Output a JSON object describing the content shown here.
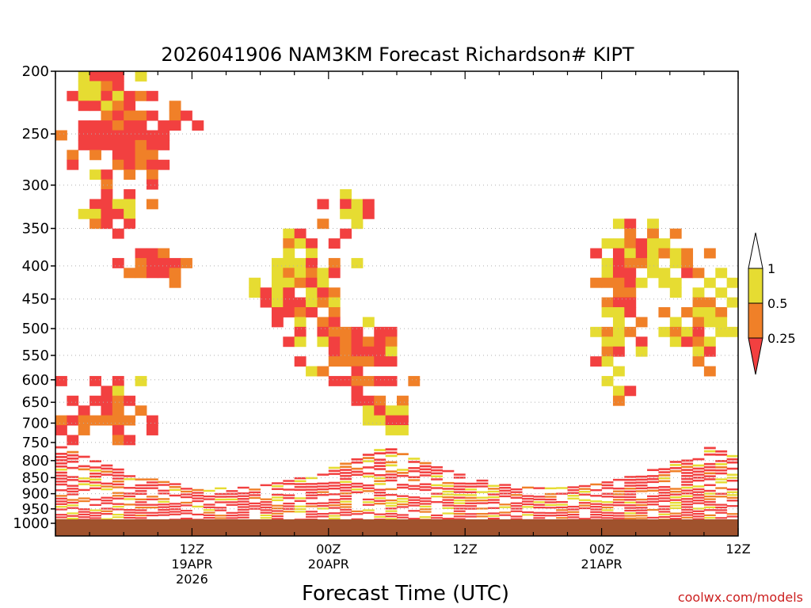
{
  "chart_data": {
    "type": "heatmap",
    "title": "2026041906 NAM3KM Forecast Richardson# KIPT",
    "xlabel": "Forecast Time (UTC)",
    "ylabel": "",
    "watermark": "coolwx.com/models",
    "y_scale": "log-pressure (hPa)",
    "ylim": [
      1000,
      200
    ],
    "y_ticks": [
      "200",
      "250",
      "300",
      "350",
      "400",
      "450",
      "500",
      "550",
      "600",
      "650",
      "700",
      "750",
      "800",
      "850",
      "900",
      "950",
      "1000"
    ],
    "x_ticks": [
      {
        "hour": 12,
        "line1": "12Z",
        "line2": "19APR",
        "line3": "2026"
      },
      {
        "hour": 24,
        "line1": "00Z",
        "line2": "20APR",
        "line3": ""
      },
      {
        "hour": 36,
        "line1": "12Z",
        "line2": "",
        "line3": ""
      },
      {
        "hour": 48,
        "line1": "00Z",
        "line2": "21APR",
        "line3": ""
      },
      {
        "hour": 60,
        "line1": "12Z",
        "line2": "",
        "line3": ""
      }
    ],
    "xlim_forecast_hours_from_06Z_19APR": [
      0,
      60
    ],
    "grid": "dotted horizontal lines at each pressure tick",
    "legend": {
      "placement": "right",
      "labels": [
        "1",
        "0.5",
        "0.25"
      ],
      "colors": {
        "low": "#f24040",
        "mid": "#f08028",
        "high": "#e6dc32",
        "top": "#ffffff"
      }
    },
    "surface_color": "#a0522d",
    "categories_by_color": {
      "red": "Ri < 0.25",
      "orange": "0.25 - 0.5",
      "yellow": "0.5 - 1"
    }
  }
}
